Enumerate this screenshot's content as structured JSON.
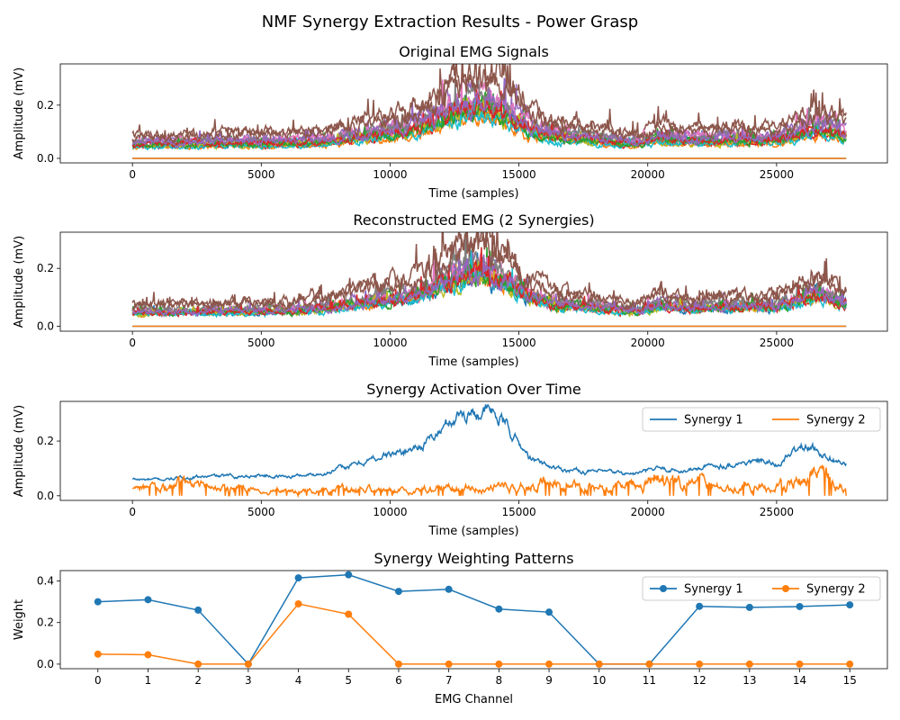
{
  "figure": {
    "suptitle": "NMF Synergy Extraction Results - Power Grasp"
  },
  "chart_data": [
    {
      "type": "line",
      "title": "Original EMG Signals",
      "xlabel": "Time (samples)",
      "ylabel": "Amplitude (mV)",
      "xlim": [
        -2800,
        29300
      ],
      "ylim": [
        -0.017,
        0.355
      ],
      "xticks": [
        0,
        5000,
        10000,
        15000,
        20000,
        25000
      ],
      "yticks": [
        0.0,
        0.2
      ],
      "xtick_labels": [
        "0",
        "5000",
        "10000",
        "15000",
        "20000",
        "25000"
      ],
      "ytick_labels": [
        "0.0",
        "0.2"
      ],
      "samples": 27700,
      "envelope": {
        "t": [
          0,
          2000,
          4000,
          6000,
          7500,
          9000,
          10500,
          11500,
          12500,
          13500,
          14500,
          15500,
          16500,
          18000,
          19500,
          20500,
          21500,
          23000,
          25000,
          26000,
          26800,
          27700
        ],
        "v": [
          0.05,
          0.055,
          0.058,
          0.058,
          0.065,
          0.085,
          0.1,
          0.125,
          0.175,
          0.2,
          0.165,
          0.105,
          0.08,
          0.07,
          0.055,
          0.075,
          0.065,
          0.07,
          0.07,
          0.095,
          0.11,
          0.085
        ]
      },
      "series": [
        {
          "scale": 0.95,
          "color": "#1f77b4"
        },
        {
          "scale": 0.8,
          "color": "#ff7f0e"
        },
        {
          "scale": 1.05,
          "color": "#2ca02c"
        },
        {
          "scale": 0.88,
          "color": "#d62728"
        },
        {
          "scale": 1.25,
          "color": "#9467bd"
        },
        {
          "scale": 1.7,
          "color": "#8c564b"
        },
        {
          "scale": 1.2,
          "color": "#e377c2"
        },
        {
          "scale": 1.15,
          "color": "#7f7f7f"
        },
        {
          "scale": 0.9,
          "color": "#bcbd22"
        },
        {
          "scale": 0.82,
          "color": "#17becf"
        },
        {
          "scale": 0.0,
          "color": "#1f77b4"
        },
        {
          "scale": 0.0,
          "color": "#ff7f0e"
        },
        {
          "scale": 0.92,
          "color": "#2ca02c"
        },
        {
          "scale": 1.0,
          "color": "#d62728"
        },
        {
          "scale": 1.1,
          "color": "#9467bd"
        },
        {
          "scale": 1.55,
          "color": "#8c564b"
        }
      ],
      "legend": null
    },
    {
      "type": "line",
      "title": "Reconstructed EMG (2 Synergies)",
      "xlabel": "Time (samples)",
      "ylabel": "Amplitude (mV)",
      "xlim": [
        -2800,
        29300
      ],
      "ylim": [
        -0.017,
        0.325
      ],
      "xticks": [
        0,
        5000,
        10000,
        15000,
        20000,
        25000
      ],
      "yticks": [
        0.0,
        0.2
      ],
      "xtick_labels": [
        "0",
        "5000",
        "10000",
        "15000",
        "20000",
        "25000"
      ],
      "ytick_labels": [
        "0.0",
        "0.2"
      ],
      "samples": 27700,
      "envelope": {
        "t": [
          0,
          2000,
          4000,
          6000,
          7500,
          9000,
          10500,
          11500,
          12500,
          13500,
          14500,
          15500,
          16500,
          18000,
          19500,
          20500,
          21500,
          23000,
          25000,
          26000,
          26800,
          27700
        ],
        "v": [
          0.045,
          0.048,
          0.05,
          0.052,
          0.06,
          0.08,
          0.095,
          0.12,
          0.165,
          0.185,
          0.155,
          0.095,
          0.07,
          0.062,
          0.05,
          0.07,
          0.06,
          0.065,
          0.065,
          0.09,
          0.105,
          0.078
        ]
      },
      "series": [
        {
          "scale": 0.95,
          "color": "#1f77b4"
        },
        {
          "scale": 1.0,
          "color": "#ff7f0e"
        },
        {
          "scale": 1.05,
          "color": "#2ca02c"
        },
        {
          "scale": 1.0,
          "color": "#d62728"
        },
        {
          "scale": 1.15,
          "color": "#9467bd"
        },
        {
          "scale": 1.65,
          "color": "#8c564b"
        },
        {
          "scale": 1.1,
          "color": "#e377c2"
        },
        {
          "scale": 1.2,
          "color": "#7f7f7f"
        },
        {
          "scale": 0.95,
          "color": "#bcbd22"
        },
        {
          "scale": 0.88,
          "color": "#17becf"
        },
        {
          "scale": 0.0,
          "color": "#1f77b4"
        },
        {
          "scale": 0.0,
          "color": "#ff7f0e"
        },
        {
          "scale": 1.0,
          "color": "#2ca02c"
        },
        {
          "scale": 1.0,
          "color": "#d62728"
        },
        {
          "scale": 1.05,
          "color": "#9467bd"
        },
        {
          "scale": 1.55,
          "color": "#8c564b"
        }
      ],
      "legend": null
    },
    {
      "type": "line",
      "title": "Synergy Activation Over Time",
      "xlabel": "Time (samples)",
      "ylabel": "Amplitude (mV)",
      "xlim": [
        -2800,
        29300
      ],
      "ylim": [
        -0.017,
        0.345
      ],
      "xticks": [
        0,
        5000,
        10000,
        15000,
        20000,
        25000
      ],
      "yticks": [
        0.0,
        0.2
      ],
      "xtick_labels": [
        "0",
        "5000",
        "10000",
        "15000",
        "20000",
        "25000"
      ],
      "ytick_labels": [
        "0.0",
        "0.2"
      ],
      "samples": 27700,
      "series": [
        {
          "name": "Synergy 1",
          "color": "#1f77b4",
          "t": [
            0,
            1000,
            2000,
            3000,
            4000,
            5000,
            6000,
            7000,
            7500,
            8500,
            9500,
            10500,
            11500,
            12000,
            12500,
            13000,
            13500,
            14000,
            14500,
            15000,
            15500,
            16500,
            17500,
            18500,
            19500,
            20500,
            21500,
            22500,
            23500,
            24500,
            25000,
            25500,
            26000,
            26500,
            27000,
            27700
          ],
          "v": [
            0.06,
            0.058,
            0.065,
            0.07,
            0.072,
            0.075,
            0.07,
            0.078,
            0.085,
            0.11,
            0.14,
            0.16,
            0.2,
            0.24,
            0.29,
            0.305,
            0.31,
            0.3,
            0.26,
            0.19,
            0.13,
            0.1,
            0.09,
            0.085,
            0.08,
            0.1,
            0.09,
            0.11,
            0.12,
            0.125,
            0.11,
            0.15,
            0.18,
            0.17,
            0.145,
            0.115
          ]
        },
        {
          "name": "Synergy 2",
          "color": "#ff7f0e",
          "t": [
            0,
            1000,
            2000,
            3000,
            4000,
            5000,
            6000,
            7000,
            8000,
            9000,
            10000,
            11000,
            12000,
            13000,
            14000,
            15000,
            16000,
            17000,
            18000,
            19000,
            20000,
            20500,
            21000,
            22000,
            23000,
            24000,
            25000,
            26000,
            26500,
            27000,
            27700
          ],
          "v": [
            0.025,
            0.03,
            0.04,
            0.03,
            0.03,
            0.015,
            0.015,
            0.02,
            0.03,
            0.025,
            0.02,
            0.02,
            0.03,
            0.03,
            0.03,
            0.03,
            0.045,
            0.035,
            0.03,
            0.03,
            0.05,
            0.075,
            0.05,
            0.045,
            0.03,
            0.03,
            0.03,
            0.06,
            0.065,
            0.06,
            0.02
          ]
        }
      ],
      "legend": {
        "position": "top-right",
        "ncol": 2,
        "markers": false
      }
    },
    {
      "type": "line",
      "title": "Synergy Weighting Patterns",
      "xlabel": "EMG Channel",
      "ylabel": "Weight",
      "xlim": [
        -0.75,
        15.75
      ],
      "ylim": [
        -0.022,
        0.45
      ],
      "xticks": [
        0,
        1,
        2,
        3,
        4,
        5,
        6,
        7,
        8,
        9,
        10,
        11,
        12,
        13,
        14,
        15
      ],
      "yticks": [
        0.0,
        0.2,
        0.4
      ],
      "xtick_labels": [
        "0",
        "1",
        "2",
        "3",
        "4",
        "5",
        "6",
        "7",
        "8",
        "9",
        "10",
        "11",
        "12",
        "13",
        "14",
        "15"
      ],
      "ytick_labels": [
        "0.0",
        "0.2",
        "0.4"
      ],
      "categories": [
        0,
        1,
        2,
        3,
        4,
        5,
        6,
        7,
        8,
        9,
        10,
        11,
        12,
        13,
        14,
        15
      ],
      "series": [
        {
          "name": "Synergy 1",
          "color": "#1f77b4",
          "values": [
            0.3,
            0.31,
            0.26,
            0.0,
            0.415,
            0.43,
            0.35,
            0.36,
            0.265,
            0.25,
            0.0,
            0.0,
            0.278,
            0.273,
            0.277,
            0.285
          ]
        },
        {
          "name": "Synergy 2",
          "color": "#ff7f0e",
          "values": [
            0.048,
            0.045,
            0.0,
            0.0,
            0.29,
            0.24,
            0.0,
            0.0,
            0.0,
            0.0,
            0.0,
            0.0,
            0.0,
            0.0,
            0.0,
            0.0
          ]
        }
      ],
      "legend": {
        "position": "top-right",
        "ncol": 2,
        "markers": true
      }
    }
  ]
}
